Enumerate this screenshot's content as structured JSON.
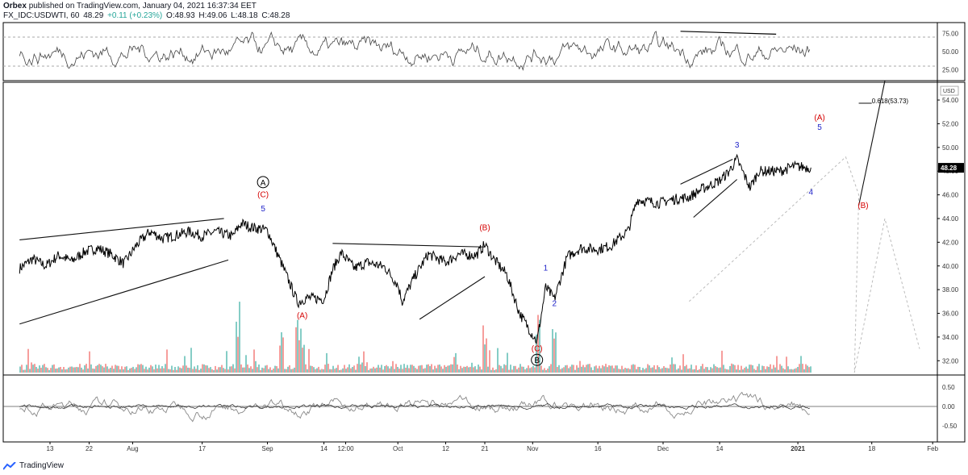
{
  "header": {
    "author": "Orbex",
    "published_text": "published on TradingView.com, January 04, 2021 16:37:34 EET",
    "symbol": "FX_IDC:USDWTI, 60",
    "last": "48.29",
    "change": "+0.11 (+0.23%)",
    "open": "O:48.93",
    "high": "H:49.06",
    "low": "L:48.18",
    "close": "C:48.28"
  },
  "footer": {
    "brand": "TradingView"
  },
  "colors": {
    "up": "#26a69a",
    "down": "#ef5350",
    "wave_red": "#d50000",
    "wave_blue": "#1e22c8",
    "price": "#000000"
  },
  "chart_data": {
    "type": "line",
    "symbol": "FX_IDC:USDWTI",
    "interval": "60",
    "price_axis": {
      "ticks": [
        "54.00",
        "52.00",
        "50.00",
        "48.00",
        "46.00",
        "44.00",
        "42.00",
        "40.00",
        "38.00",
        "36.00",
        "34.00",
        "32.00"
      ],
      "unit_label": "USD",
      "last_value_label": "48.28",
      "ylim": [
        31,
        55.5
      ]
    },
    "time_axis": {
      "ticks": [
        "13",
        "22",
        "Aug",
        "17",
        "Sep",
        "14",
        "12:00",
        "Oct",
        "12",
        "21",
        "Nov",
        "16",
        "Dec",
        "14",
        "2021",
        "18",
        "Feb"
      ]
    },
    "price_path": [
      [
        "Jul 6",
        39.8
      ],
      [
        "Jul 9",
        40.6
      ],
      [
        "Jul 12",
        40.0
      ],
      [
        "Jul 15",
        40.9
      ],
      [
        "Jul 18",
        40.4
      ],
      [
        "Jul 21",
        41.2
      ],
      [
        "Jul 24",
        41.5
      ],
      [
        "Jul 27",
        41.0
      ],
      [
        "Jul 30",
        40.2
      ],
      [
        "Aug 2",
        41.8
      ],
      [
        "Aug 5",
        42.9
      ],
      [
        "Aug 8",
        42.3
      ],
      [
        "Aug 11",
        42.6
      ],
      [
        "Aug 14",
        42.9
      ],
      [
        "Aug 17",
        42.5
      ],
      [
        "Aug 20",
        42.9
      ],
      [
        "Aug 24",
        42.5
      ],
      [
        "Aug 26",
        43.6
      ],
      [
        "Aug 28",
        43.3
      ],
      [
        "Sep 1",
        43.0
      ],
      [
        "Sep 4",
        40.4
      ],
      [
        "Sep 8",
        36.9
      ],
      [
        "Sep 10",
        37.3
      ],
      [
        "Sep 14",
        37.2
      ],
      [
        "Sep 16",
        39.7
      ],
      [
        "Sep 18",
        41.1
      ],
      [
        "Sep 21",
        39.8
      ],
      [
        "Sep 24",
        40.3
      ],
      [
        "Sep 28",
        39.9
      ],
      [
        "Oct 1",
        38.4
      ],
      [
        "Oct 2",
        37.0
      ],
      [
        "Oct 5",
        39.2
      ],
      [
        "Oct 8",
        41.0
      ],
      [
        "Oct 12",
        40.3
      ],
      [
        "Oct 15",
        41.0
      ],
      [
        "Oct 19",
        40.9
      ],
      [
        "Oct 21",
        41.8
      ],
      [
        "Oct 23",
        40.6
      ],
      [
        "Oct 26",
        39.3
      ],
      [
        "Oct 29",
        36.0
      ],
      [
        "Nov 2",
        33.6
      ],
      [
        "Nov 4",
        38.2
      ],
      [
        "Nov 6",
        37.2
      ],
      [
        "Nov 9",
        40.8
      ],
      [
        "Nov 12",
        41.5
      ],
      [
        "Nov 16",
        41.4
      ],
      [
        "Nov 19",
        41.7
      ],
      [
        "Nov 23",
        43.0
      ],
      [
        "Nov 25",
        45.6
      ],
      [
        "Nov 30",
        45.3
      ],
      [
        "Dec 3",
        45.6
      ],
      [
        "Dec 7",
        45.8
      ],
      [
        "Dec 10",
        46.5
      ],
      [
        "Dec 14",
        47.2
      ],
      [
        "Dec 16",
        47.9
      ],
      [
        "Dec 18",
        49.0
      ],
      [
        "Dec 21",
        46.6
      ],
      [
        "Dec 23",
        48.0
      ],
      [
        "Dec 28",
        48.0
      ],
      [
        "Dec 31",
        48.4
      ],
      [
        "Jan 4",
        48.3
      ]
    ],
    "annotations": [
      {
        "label": "A",
        "circled": true,
        "date": "Aug 31",
        "y": 46.8
      },
      {
        "label": "(C)",
        "color": "red",
        "date": "Aug 31",
        "y": 45.8
      },
      {
        "label": "5",
        "color": "blue",
        "date": "Aug 31",
        "y": 44.6
      },
      {
        "label": "(A)",
        "color": "red",
        "date": "Sep 9",
        "y": 35.6
      },
      {
        "label": "(B)",
        "color": "red",
        "date": "Oct 21",
        "y": 43.0
      },
      {
        "label": "(C)",
        "color": "red",
        "date": "Nov 2",
        "y": 32.8
      },
      {
        "label": "B",
        "circled": true,
        "date": "Nov 2",
        "y": 31.8
      },
      {
        "label": "1",
        "color": "blue",
        "date": "Nov 4",
        "y": 39.6
      },
      {
        "label": "2",
        "color": "blue",
        "date": "Nov 6",
        "y": 36.6
      },
      {
        "label": "3",
        "color": "blue",
        "date": "Dec 18",
        "y": 50.0
      },
      {
        "label": "4",
        "color": "blue",
        "date": "Jan 4",
        "y": 46.0
      },
      {
        "label": "(A)",
        "color": "red",
        "date": "Jan 6",
        "y": 52.3
      },
      {
        "label": "5",
        "color": "blue",
        "date": "Jan 6",
        "y": 51.5
      },
      {
        "label": "(B)",
        "color": "red",
        "date": "Jan 16",
        "y": 44.9
      },
      {
        "label": "0.618(53.73)",
        "color": "black",
        "date": "Jan 18",
        "y": 53.73
      }
    ],
    "trendlines": [
      {
        "from": [
          "Jul 6",
          42.2
        ],
        "to": [
          "Aug 22",
          44.0
        ]
      },
      {
        "from": [
          "Jul 6",
          35.1
        ],
        "to": [
          "Aug 23",
          40.5
        ]
      },
      {
        "from": [
          "Sep 16",
          41.9
        ],
        "to": [
          "Oct 21",
          41.6
        ]
      },
      {
        "from": [
          "Oct 6",
          35.5
        ],
        "to": [
          "Oct 21",
          39.1
        ]
      },
      {
        "from": [
          "Dec 5",
          46.9
        ],
        "to": [
          "Dec 17",
          49.0
        ]
      },
      {
        "from": [
          "Dec 8",
          44.1
        ],
        "to": [
          "Dec 18",
          47.3
        ]
      },
      {
        "from": [
          "Jan 15",
          45.1
        ],
        "to": [
          "Jan 21",
          55.6
        ]
      },
      {
        "from": [
          "Jan 15",
          53.73
        ],
        "to": [
          "Jan 18",
          53.73
        ]
      }
    ],
    "projection_dashed": [
      [
        "Dec 7",
        37.0
      ],
      [
        "Jan 12",
        49.2
      ],
      [
        "Jan 15",
        46.0
      ],
      [
        "Jan 14",
        31.0
      ],
      [
        "Jan 21",
        44.0
      ],
      [
        "Jan 29",
        33.0
      ]
    ],
    "rsi": {
      "ticks": [
        "75.00",
        "50.00",
        "25.00"
      ],
      "levels": [
        70,
        30
      ],
      "divergence_line": {
        "from": [
          "Dec 5",
          78
        ],
        "to": [
          "Dec 27",
          74
        ]
      }
    },
    "oscillator": {
      "ticks": [
        "0.50",
        "0.00",
        "-0.50"
      ]
    },
    "volume": {
      "colors": [
        "#26a69a",
        "#ef5350"
      ]
    }
  }
}
